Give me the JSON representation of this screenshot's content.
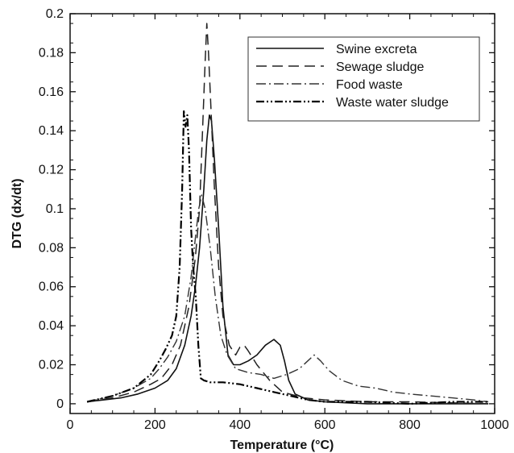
{
  "chart_data": {
    "type": "line",
    "title": "",
    "xlabel": "Temperature (°C)",
    "ylabel": "DTG (dx/dt)",
    "xlim": [
      0,
      1000
    ],
    "ylim": [
      -0.005,
      0.2
    ],
    "x_ticks": [
      "0",
      "200",
      "400",
      "600",
      "800",
      "1000"
    ],
    "y_ticks": [
      "0",
      "0.02",
      "0.04",
      "0.06",
      "0.08",
      "0.1",
      "0.12",
      "0.14",
      "0.16",
      "0.18",
      "0.2"
    ],
    "grid": false,
    "legend_position": "top-right",
    "series": [
      {
        "name": "Swine excreta",
        "style": "solid",
        "color": "#111111",
        "points": [
          [
            40,
            0.001
          ],
          [
            80,
            0.002
          ],
          [
            120,
            0.003
          ],
          [
            160,
            0.005
          ],
          [
            200,
            0.008
          ],
          [
            230,
            0.012
          ],
          [
            250,
            0.018
          ],
          [
            270,
            0.03
          ],
          [
            285,
            0.045
          ],
          [
            295,
            0.06
          ],
          [
            305,
            0.08
          ],
          [
            315,
            0.11
          ],
          [
            322,
            0.135
          ],
          [
            328,
            0.148
          ],
          [
            333,
            0.145
          ],
          [
            340,
            0.125
          ],
          [
            350,
            0.09
          ],
          [
            360,
            0.05
          ],
          [
            372,
            0.025
          ],
          [
            385,
            0.02
          ],
          [
            400,
            0.02
          ],
          [
            420,
            0.022
          ],
          [
            440,
            0.025
          ],
          [
            460,
            0.03
          ],
          [
            480,
            0.033
          ],
          [
            495,
            0.03
          ],
          [
            505,
            0.022
          ],
          [
            515,
            0.012
          ],
          [
            530,
            0.005
          ],
          [
            560,
            0.002
          ],
          [
            600,
            0.001
          ],
          [
            700,
            0.0
          ],
          [
            800,
            0.0
          ],
          [
            900,
            0.0
          ],
          [
            985,
            0.0
          ]
        ]
      },
      {
        "name": "Sewage sludge",
        "style": "dashed",
        "color": "#222222",
        "points": [
          [
            40,
            0.001
          ],
          [
            100,
            0.003
          ],
          [
            150,
            0.006
          ],
          [
            190,
            0.01
          ],
          [
            215,
            0.013
          ],
          [
            240,
            0.02
          ],
          [
            260,
            0.03
          ],
          [
            280,
            0.05
          ],
          [
            295,
            0.075
          ],
          [
            305,
            0.1
          ],
          [
            312,
            0.14
          ],
          [
            318,
            0.175
          ],
          [
            322,
            0.195
          ],
          [
            326,
            0.18
          ],
          [
            332,
            0.15
          ],
          [
            340,
            0.11
          ],
          [
            350,
            0.07
          ],
          [
            360,
            0.045
          ],
          [
            375,
            0.03
          ],
          [
            390,
            0.025
          ],
          [
            400,
            0.029
          ],
          [
            410,
            0.03
          ],
          [
            420,
            0.027
          ],
          [
            440,
            0.02
          ],
          [
            470,
            0.012
          ],
          [
            500,
            0.006
          ],
          [
            550,
            0.003
          ],
          [
            600,
            0.002
          ],
          [
            700,
            0.001
          ],
          [
            800,
            0.001
          ],
          [
            985,
            0.0
          ]
        ]
      },
      {
        "name": "Food waste",
        "style": "dashdot",
        "color": "#333333",
        "points": [
          [
            40,
            0.001
          ],
          [
            100,
            0.004
          ],
          [
            150,
            0.008
          ],
          [
            190,
            0.013
          ],
          [
            210,
            0.018
          ],
          [
            230,
            0.024
          ],
          [
            250,
            0.032
          ],
          [
            270,
            0.045
          ],
          [
            285,
            0.065
          ],
          [
            295,
            0.085
          ],
          [
            303,
            0.1
          ],
          [
            310,
            0.107
          ],
          [
            318,
            0.1
          ],
          [
            330,
            0.08
          ],
          [
            342,
            0.055
          ],
          [
            355,
            0.035
          ],
          [
            370,
            0.025
          ],
          [
            390,
            0.018
          ],
          [
            420,
            0.016
          ],
          [
            450,
            0.015
          ],
          [
            480,
            0.013
          ],
          [
            510,
            0.015
          ],
          [
            540,
            0.018
          ],
          [
            560,
            0.022
          ],
          [
            575,
            0.025
          ],
          [
            590,
            0.022
          ],
          [
            610,
            0.017
          ],
          [
            640,
            0.012
          ],
          [
            680,
            0.009
          ],
          [
            720,
            0.008
          ],
          [
            760,
            0.006
          ],
          [
            800,
            0.005
          ],
          [
            850,
            0.004
          ],
          [
            900,
            0.003
          ],
          [
            950,
            0.002
          ],
          [
            985,
            0.001
          ]
        ]
      },
      {
        "name": "Waste water sludge",
        "style": "dashdotdot",
        "color": "#000000",
        "points": [
          [
            40,
            0.001
          ],
          [
            100,
            0.004
          ],
          [
            150,
            0.008
          ],
          [
            190,
            0.015
          ],
          [
            210,
            0.022
          ],
          [
            225,
            0.028
          ],
          [
            240,
            0.035
          ],
          [
            250,
            0.045
          ],
          [
            258,
            0.07
          ],
          [
            264,
            0.11
          ],
          [
            268,
            0.15
          ],
          [
            272,
            0.142
          ],
          [
            276,
            0.148
          ],
          [
            280,
            0.13
          ],
          [
            285,
            0.09
          ],
          [
            290,
            0.07
          ],
          [
            296,
            0.055
          ],
          [
            302,
            0.03
          ],
          [
            308,
            0.013
          ],
          [
            315,
            0.012
          ],
          [
            330,
            0.011
          ],
          [
            360,
            0.011
          ],
          [
            400,
            0.01
          ],
          [
            440,
            0.008
          ],
          [
            480,
            0.006
          ],
          [
            520,
            0.004
          ],
          [
            560,
            0.002
          ],
          [
            600,
            0.001
          ],
          [
            700,
            0.001
          ],
          [
            800,
            0.0
          ],
          [
            900,
            0.001
          ],
          [
            985,
            0.001
          ]
        ]
      }
    ]
  }
}
